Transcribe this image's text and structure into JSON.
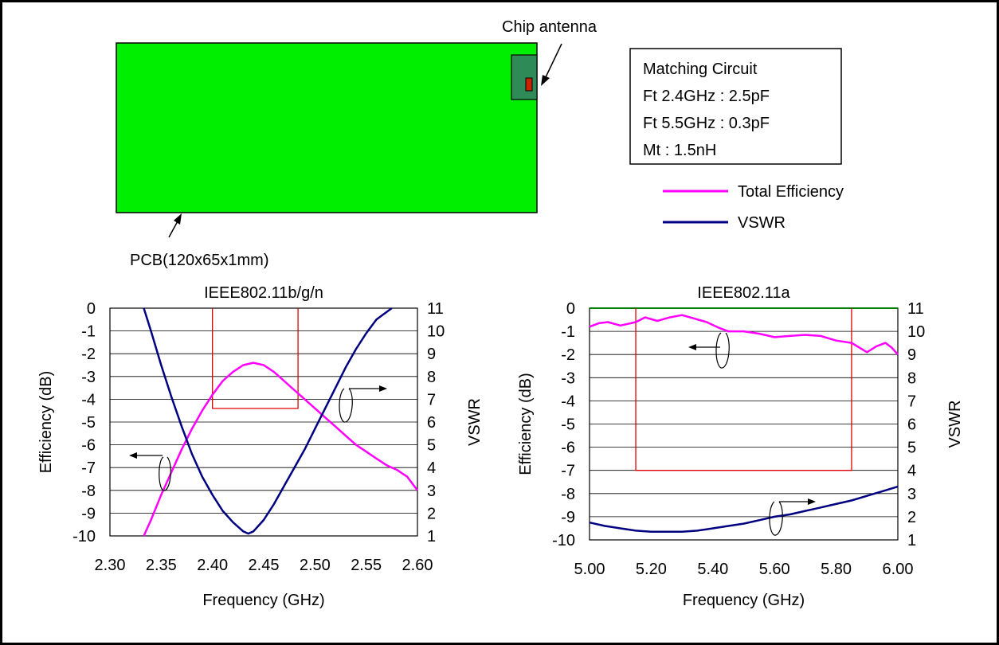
{
  "diagram": {
    "chip_label": "Chip antenna",
    "pcb_label": "PCB(120x65x1mm)",
    "pcb_color": "#00ee00",
    "chip_color": "#2e8b57",
    "feed_color": "#cc2200",
    "matching_box": [
      "Matching Circuit",
      "Ft 2.4GHz : 2.5pF",
      "Ft 5.5GHz : 0.3pF",
      "Mt : 1.5nH"
    ]
  },
  "legend": [
    {
      "name": "Total Efficiency",
      "color": "#ff00ff"
    },
    {
      "name": "VSWR",
      "color": "#000080"
    }
  ],
  "chart_data": [
    {
      "type": "line",
      "title": "IEEE802.11b/g/n",
      "xlabel": "Frequency (GHz)",
      "ylabel": "Efficiency (dB)",
      "y2label": "VSWR",
      "xlim": [
        2.3,
        2.6
      ],
      "ylim": [
        -10,
        0
      ],
      "y2lim": [
        1,
        11
      ],
      "x_ticks": [
        "2.30",
        "2.35",
        "2.40",
        "2.45",
        "2.50",
        "2.55",
        "2.60"
      ],
      "y_ticks": [
        "0",
        "-1",
        "-2",
        "-3",
        "-4",
        "-5",
        "-6",
        "-7",
        "-8",
        "-9",
        "-10"
      ],
      "y2_ticks": [
        "11",
        "10",
        "9",
        "8",
        "7",
        "6",
        "5",
        "4",
        "3",
        "2",
        "1"
      ],
      "band": {
        "x": [
          2.4,
          2.4835
        ],
        "efficiency_limit": -4.4
      },
      "series": [
        {
          "name": "Total Efficiency",
          "axis": "left",
          "color": "#ff00ff",
          "x": [
            2.333,
            2.34,
            2.35,
            2.36,
            2.37,
            2.38,
            2.39,
            2.4,
            2.41,
            2.42,
            2.43,
            2.44,
            2.45,
            2.46,
            2.47,
            2.48,
            2.49,
            2.5,
            2.51,
            2.52,
            2.53,
            2.54,
            2.55,
            2.56,
            2.57,
            2.58,
            2.59,
            2.6
          ],
          "y": [
            -10.0,
            -9.3,
            -8.2,
            -7.2,
            -6.2,
            -5.3,
            -4.5,
            -3.8,
            -3.2,
            -2.8,
            -2.5,
            -2.4,
            -2.5,
            -2.8,
            -3.2,
            -3.6,
            -4.0,
            -4.4,
            -4.8,
            -5.2,
            -5.6,
            -6.0,
            -6.3,
            -6.6,
            -6.9,
            -7.1,
            -7.4,
            -8.0
          ]
        },
        {
          "name": "VSWR",
          "axis": "right",
          "color": "#000080",
          "x": [
            2.333,
            2.34,
            2.35,
            2.36,
            2.37,
            2.38,
            2.39,
            2.4,
            2.41,
            2.42,
            2.43,
            2.435,
            2.44,
            2.45,
            2.46,
            2.47,
            2.48,
            2.49,
            2.5,
            2.51,
            2.52,
            2.53,
            2.54,
            2.55,
            2.56,
            2.575
          ],
          "y": [
            11.0,
            10.0,
            8.5,
            7.1,
            5.8,
            4.6,
            3.6,
            2.8,
            2.1,
            1.6,
            1.2,
            1.1,
            1.2,
            1.7,
            2.4,
            3.2,
            4.0,
            4.8,
            5.7,
            6.6,
            7.5,
            8.4,
            9.2,
            9.9,
            10.5,
            11.0
          ]
        }
      ]
    },
    {
      "type": "line",
      "title": "IEEE802.11a",
      "xlabel": "Frequency (GHz)",
      "ylabel": "Efficiency (dB)",
      "y2label": "VSWR",
      "xlim": [
        5.0,
        6.0
      ],
      "ylim": [
        -10,
        0
      ],
      "y2lim": [
        1,
        11
      ],
      "x_ticks": [
        "5.00",
        "5.20",
        "5.40",
        "5.60",
        "5.80",
        "6.00"
      ],
      "y_ticks": [
        "0",
        "-1",
        "-2",
        "-3",
        "-4",
        "-5",
        "-6",
        "-7",
        "-8",
        "-9",
        "-10"
      ],
      "y2_ticks": [
        "11",
        "10",
        "9",
        "8",
        "7",
        "6",
        "5",
        "4",
        "3",
        "2",
        "1"
      ],
      "band": {
        "x": [
          5.15,
          5.85
        ],
        "efficiency_limit": -7.0
      },
      "series": [
        {
          "name": "Total Efficiency",
          "axis": "left",
          "color": "#ff00ff",
          "x": [
            5.0,
            5.03,
            5.06,
            5.1,
            5.15,
            5.18,
            5.22,
            5.26,
            5.3,
            5.34,
            5.38,
            5.42,
            5.45,
            5.5,
            5.55,
            5.6,
            5.65,
            5.7,
            5.75,
            5.8,
            5.85,
            5.9,
            5.93,
            5.96,
            5.98,
            6.0
          ],
          "y": [
            -0.8,
            -0.65,
            -0.6,
            -0.75,
            -0.6,
            -0.4,
            -0.55,
            -0.4,
            -0.3,
            -0.45,
            -0.6,
            -0.85,
            -1.0,
            -1.0,
            -1.1,
            -1.25,
            -1.2,
            -1.15,
            -1.2,
            -1.4,
            -1.5,
            -1.9,
            -1.65,
            -1.5,
            -1.7,
            -2.0
          ]
        },
        {
          "name": "VSWR",
          "axis": "right",
          "color": "#000080",
          "x": [
            5.0,
            5.05,
            5.1,
            5.15,
            5.2,
            5.25,
            5.3,
            5.35,
            5.4,
            5.45,
            5.5,
            5.55,
            5.6,
            5.65,
            5.7,
            5.75,
            5.8,
            5.85,
            5.9,
            5.95,
            6.0
          ],
          "y": [
            1.75,
            1.6,
            1.5,
            1.4,
            1.35,
            1.35,
            1.35,
            1.4,
            1.5,
            1.6,
            1.7,
            1.85,
            2.0,
            2.1,
            2.25,
            2.4,
            2.55,
            2.7,
            2.9,
            3.1,
            3.3
          ]
        }
      ]
    }
  ]
}
